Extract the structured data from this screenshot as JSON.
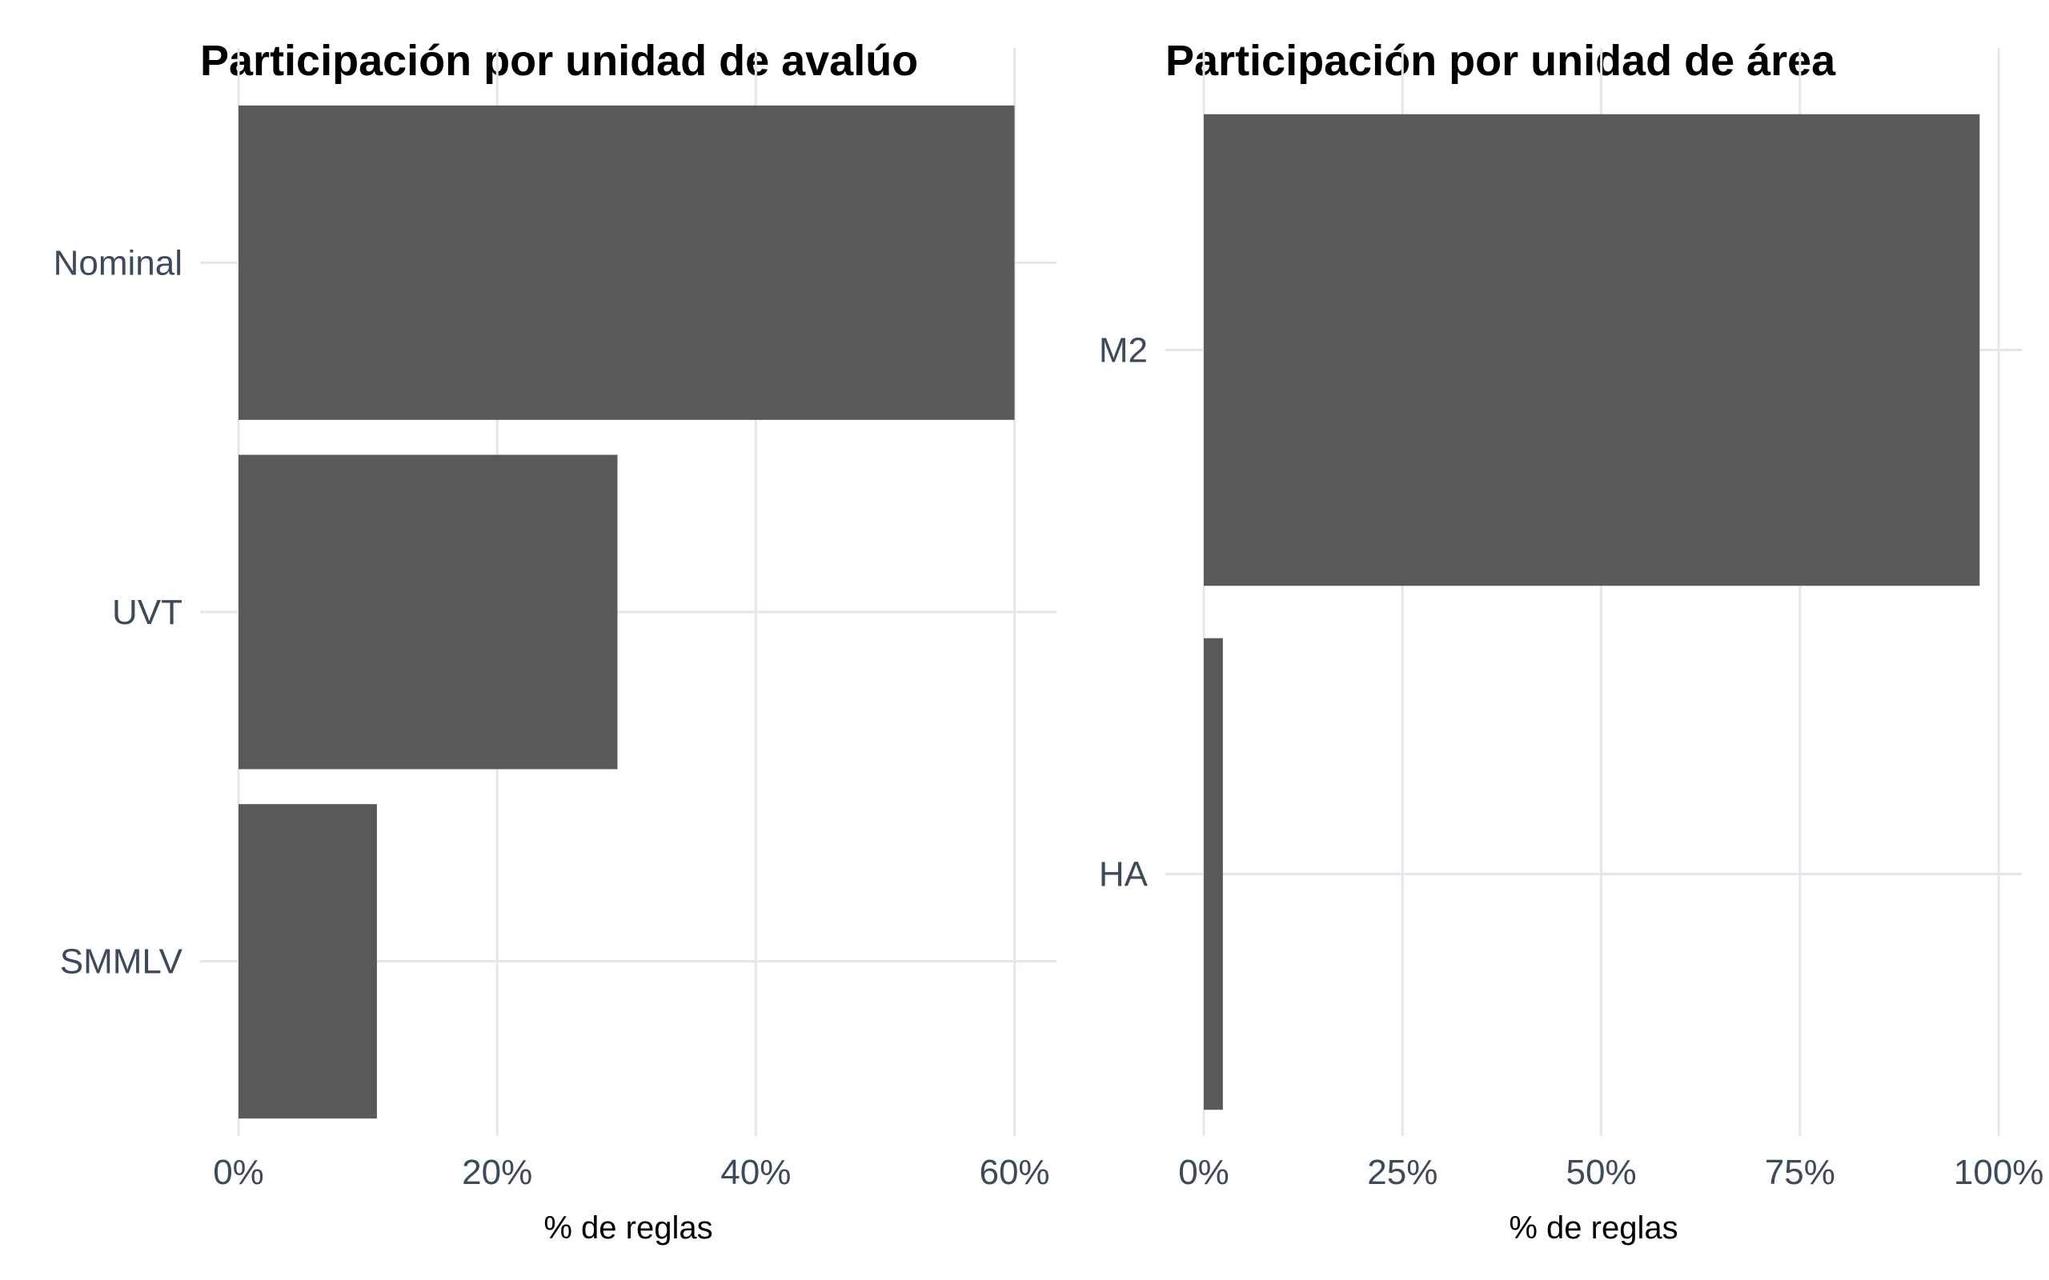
{
  "colors": {
    "bar": "#595959",
    "grid": "#e3e7ed",
    "tick_text": "#3c4a5c",
    "background": "#ffffff"
  },
  "chart_data": [
    {
      "type": "bar",
      "orientation": "horizontal",
      "title": "Participación por unidad de avalúo",
      "categories": [
        "Nominal",
        "UVT",
        "SMMLV"
      ],
      "values": [
        60,
        29.3,
        10.7
      ],
      "xlabel": "% de reglas",
      "ylabel": "",
      "xlim": [
        0,
        63
      ],
      "xticks": [
        0,
        20,
        40,
        60
      ],
      "xtick_labels": [
        "0%",
        "20%",
        "40%",
        "60%"
      ],
      "grid": true,
      "legend": "none"
    },
    {
      "type": "bar",
      "orientation": "horizontal",
      "title": "Participación por unidad de área",
      "categories": [
        "M2",
        "HA"
      ],
      "values": [
        97.6,
        2.4
      ],
      "xlabel": "% de reglas",
      "ylabel": "",
      "xlim": [
        0,
        102.5
      ],
      "xticks": [
        0,
        25,
        50,
        75,
        100
      ],
      "xtick_labels": [
        "0%",
        "25%",
        "50%",
        "75%",
        "100%"
      ],
      "grid": true,
      "legend": "none"
    }
  ]
}
